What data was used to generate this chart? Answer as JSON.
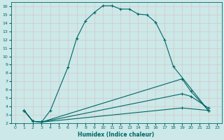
{
  "xlabel": "Humidex (Indice chaleur)",
  "bg_color": "#cce8e8",
  "grid_color": "#b8d8d8",
  "line_color": "#006666",
  "xlim": [
    -0.5,
    23.5
  ],
  "ylim": [
    2,
    16.5
  ],
  "xticks": [
    0,
    1,
    2,
    3,
    4,
    5,
    6,
    7,
    8,
    9,
    10,
    11,
    12,
    13,
    14,
    15,
    16,
    17,
    18,
    19,
    20,
    21,
    22,
    23
  ],
  "yticks": [
    2,
    3,
    4,
    5,
    6,
    7,
    8,
    9,
    10,
    11,
    12,
    13,
    14,
    15,
    16
  ],
  "curve1_x": [
    1,
    2,
    3,
    4,
    6,
    7,
    8,
    9,
    10,
    11,
    12,
    13,
    14,
    15,
    16,
    17,
    18,
    22
  ],
  "curve1_y": [
    3.5,
    2.2,
    2.1,
    3.5,
    8.7,
    12.2,
    14.3,
    15.3,
    16.1,
    16.1,
    15.7,
    15.7,
    15.1,
    15.0,
    14.1,
    12.0,
    8.8,
    3.5
  ],
  "curve2_x": [
    1,
    2,
    3,
    19,
    20,
    22
  ],
  "curve2_y": [
    3.5,
    2.2,
    2.1,
    7.3,
    5.8,
    3.5
  ],
  "curve3_x": [
    1,
    2,
    3,
    19,
    20,
    22
  ],
  "curve3_y": [
    3.5,
    2.2,
    2.1,
    5.5,
    5.2,
    3.8
  ],
  "curve4_x": [
    1,
    2,
    3,
    19,
    22
  ],
  "curve4_y": [
    3.5,
    2.2,
    2.1,
    3.8,
    3.5
  ]
}
